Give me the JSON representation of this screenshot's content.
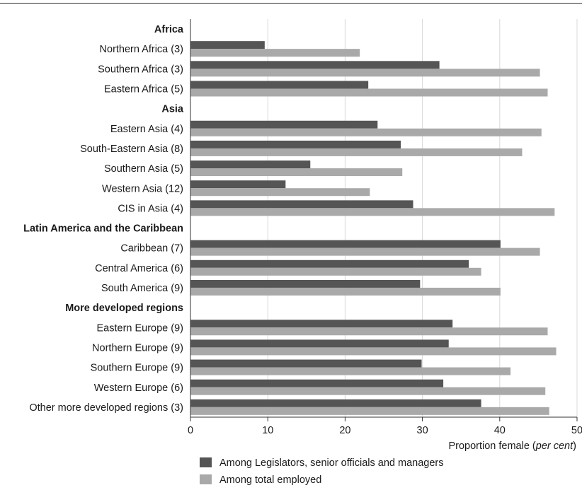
{
  "chart_data": {
    "type": "bar",
    "orientation": "horizontal",
    "xlabel": "Proportion female",
    "xlabel_unit": "per cent",
    "xlim": [
      0,
      50
    ],
    "xticks": [
      0,
      10,
      20,
      30,
      40,
      50
    ],
    "grid": true,
    "legend_position": "bottom",
    "colors": {
      "legislators": "#555555",
      "employed": "#a9a9a9",
      "grid": "#d9d9d9"
    },
    "series": [
      {
        "name": "Among Legislators, senior officials and managers",
        "key": "legislators"
      },
      {
        "name": "Among total employed",
        "key": "employed"
      }
    ],
    "rows": [
      {
        "kind": "group",
        "label": "Africa"
      },
      {
        "kind": "cat",
        "label": "Northern Africa (3)",
        "values": [
          9.6,
          21.9
        ]
      },
      {
        "kind": "cat",
        "label": "Southern Africa (3)",
        "values": [
          32.2,
          45.2
        ]
      },
      {
        "kind": "cat",
        "label": "Eastern Africa (5)",
        "values": [
          23.0,
          46.2
        ]
      },
      {
        "kind": "group",
        "label": "Asia"
      },
      {
        "kind": "cat",
        "label": "Eastern Asia (4)",
        "values": [
          24.2,
          45.4
        ]
      },
      {
        "kind": "cat",
        "label": "South-Eastern Asia (8)",
        "values": [
          27.2,
          42.9
        ]
      },
      {
        "kind": "cat",
        "label": "Southern Asia (5)",
        "values": [
          15.5,
          27.4
        ]
      },
      {
        "kind": "cat",
        "label": "Western Asia (12)",
        "values": [
          12.3,
          23.2
        ]
      },
      {
        "kind": "cat",
        "label": "CIS in Asia (4)",
        "values": [
          28.8,
          47.1
        ]
      },
      {
        "kind": "group",
        "label": "Latin America and the Caribbean"
      },
      {
        "kind": "cat",
        "label": "Caribbean (7)",
        "values": [
          40.1,
          45.2
        ]
      },
      {
        "kind": "cat",
        "label": "Central America (6)",
        "values": [
          36.0,
          37.6
        ]
      },
      {
        "kind": "cat",
        "label": "South America (9)",
        "values": [
          29.7,
          40.1
        ]
      },
      {
        "kind": "group",
        "label": "More developed regions"
      },
      {
        "kind": "cat",
        "label": "Eastern Europe (9)",
        "values": [
          33.9,
          46.2
        ]
      },
      {
        "kind": "cat",
        "label": "Northern Europe (9)",
        "values": [
          33.4,
          47.3
        ]
      },
      {
        "kind": "cat",
        "label": "Southern Europe (9)",
        "values": [
          29.9,
          41.4
        ]
      },
      {
        "kind": "cat",
        "label": "Western Europe (6)",
        "values": [
          32.7,
          45.9
        ]
      },
      {
        "kind": "cat",
        "label": "Other more developed regions (3)",
        "values": [
          37.6,
          46.4
        ]
      }
    ]
  }
}
